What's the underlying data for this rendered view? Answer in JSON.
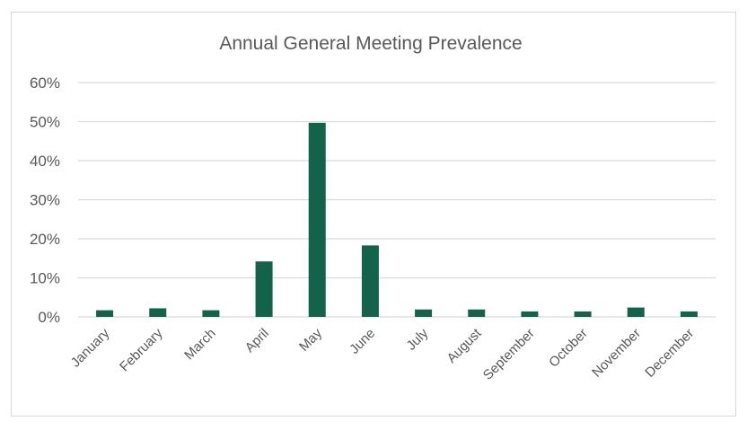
{
  "chart_data": {
    "type": "bar",
    "title": "Annual General Meeting Prevalence",
    "categories": [
      "January",
      "February",
      "March",
      "April",
      "May",
      "June",
      "July",
      "August",
      "September",
      "October",
      "November",
      "December"
    ],
    "values": [
      1.7,
      2.2,
      1.7,
      14.2,
      49.7,
      18.3,
      1.9,
      1.9,
      1.4,
      1.4,
      2.4,
      1.4
    ],
    "yticks": [
      "0%",
      "10%",
      "20%",
      "30%",
      "40%",
      "50%",
      "60%"
    ],
    "ylim": [
      0,
      60
    ],
    "xlabel": "",
    "ylabel": "",
    "grid": true,
    "bar_color": "#13634b"
  }
}
